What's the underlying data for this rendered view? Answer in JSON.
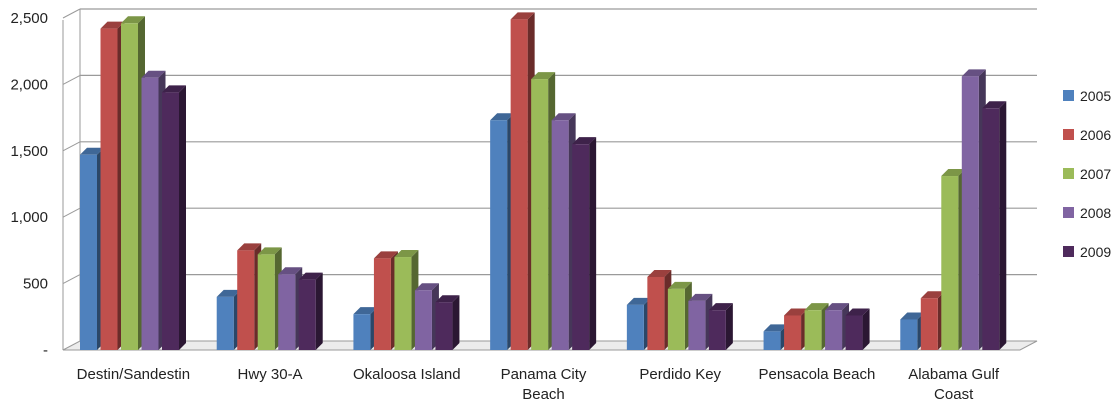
{
  "chart_data": {
    "type": "bar",
    "categories": [
      "Destin/Sandestin",
      "Hwy 30-A",
      "Okaloosa Island",
      "Panama City Beach",
      "Perdido Key",
      "Pensacola Beach",
      "Alabama Gulf Coast"
    ],
    "series": [
      {
        "name": "2005",
        "color": "#4f81bd",
        "values": [
          1470,
          400,
          270,
          1730,
          340,
          140,
          230
        ]
      },
      {
        "name": "2006",
        "color": "#c0504d",
        "values": [
          2420,
          750,
          690,
          2490,
          550,
          260,
          390
        ]
      },
      {
        "name": "2007",
        "color": "#9bbb59",
        "values": [
          2460,
          720,
          700,
          2040,
          460,
          300,
          1310
        ]
      },
      {
        "name": "2008",
        "color": "#8064a2",
        "values": [
          2050,
          570,
          450,
          1730,
          370,
          300,
          2060
        ]
      },
      {
        "name": "2009",
        "color": "#4e2a5c",
        "values": [
          1940,
          530,
          360,
          1550,
          300,
          260,
          1820
        ]
      }
    ],
    "yticks": [
      "-",
      "500",
      "1,000",
      "1,500",
      "2,000",
      "2,500"
    ],
    "ytick_values": [
      0,
      500,
      1000,
      1500,
      2000,
      2500
    ],
    "ylim": [
      0,
      2500
    ],
    "title": "",
    "xlabel": "",
    "ylabel": "",
    "grid": true,
    "legend_position": "right"
  }
}
